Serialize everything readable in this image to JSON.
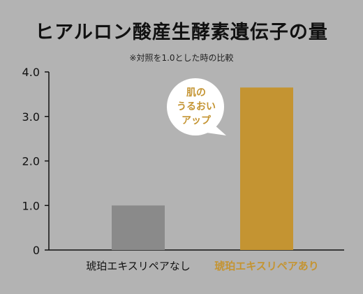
{
  "header": {
    "title": "ヒアルロン酸産生酵素遺伝子の量",
    "note": "※対照を1.0とした時の比較"
  },
  "callout": {
    "lines": [
      "肌の",
      "うるおい",
      "アップ"
    ]
  },
  "colors": {
    "background": "#b3b3b3",
    "control_bar": "#8a8a8a",
    "treated_bar": "#c49432",
    "treated_label": "#c49432",
    "axis": "#111111",
    "callout_bg": "#ffffff"
  },
  "chart_data": {
    "type": "bar",
    "title": "ヒアルロン酸産生酵素遺伝子の量",
    "subtitle": "※対照を1.0とした時の比較",
    "categories": [
      "琥珀エキスリペアなし",
      "琥珀エキスリペアあり"
    ],
    "values": [
      1.0,
      3.65
    ],
    "ylim": [
      0,
      4.0
    ],
    "yticks": [
      0,
      1.0,
      2.0,
      3.0,
      4.0
    ],
    "ytick_labels": [
      "0",
      "1.0",
      "2.0",
      "3.0",
      "4.0"
    ],
    "grid": false,
    "legend": "none",
    "annotation": "肌の うるおい アップ"
  }
}
